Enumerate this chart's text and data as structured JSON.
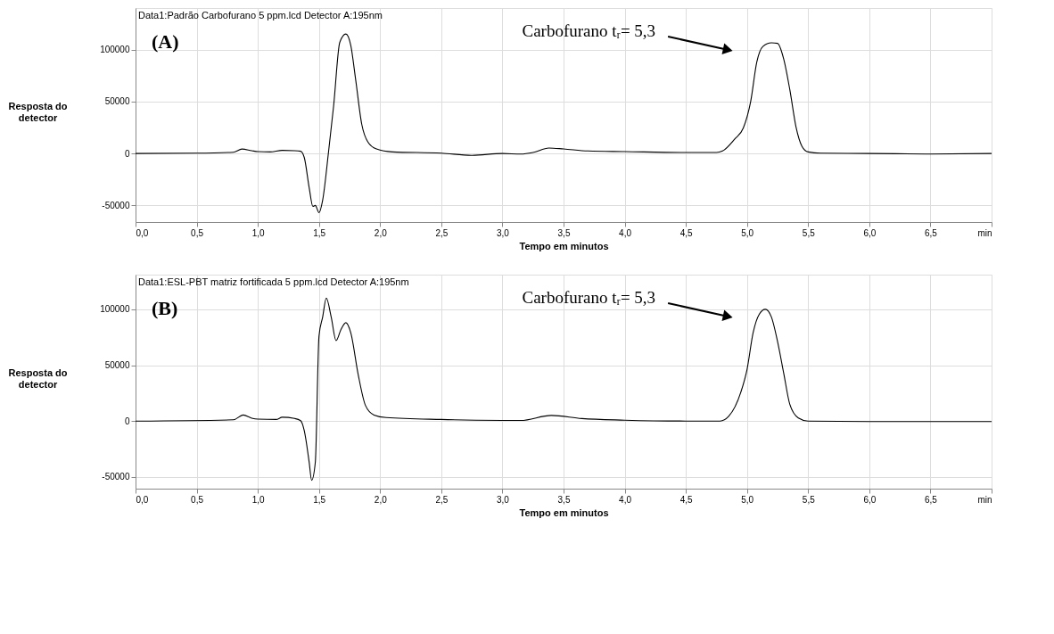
{
  "chart_data": [
    {
      "type": "line",
      "title": "Data1:Padrão Carbofurano 5 ppm.lcd Detector A:195nm",
      "xlabel": "Tempo em minutos",
      "ylabel": "Resposta do detector",
      "annotations": [
        "(A)",
        "Carbofurano tᵣ= 5,3"
      ],
      "series": [
        {
          "color": "#000000",
          "x": [
            0,
            0.5,
            0.8,
            0.87,
            0.95,
            1.0,
            1.1,
            1.2,
            1.3,
            1.35,
            1.38,
            1.42,
            1.45,
            1.47,
            1.5,
            1.53,
            1.58,
            1.62,
            1.67,
            1.72,
            1.76,
            1.8,
            1.85,
            1.9,
            1.97,
            2.1,
            2.5,
            2.75,
            3.0,
            3.15,
            3.25,
            3.38,
            3.5,
            3.7,
            4.0,
            4.5,
            4.75,
            4.8,
            4.9,
            4.97,
            5.03,
            5.08,
            5.13,
            5.2,
            5.25,
            5.3,
            5.35,
            5.4,
            5.45,
            5.5,
            5.6,
            6.0,
            6.5,
            7.0
          ],
          "values": [
            0,
            300,
            1200,
            4300,
            2700,
            1800,
            1500,
            3000,
            2700,
            2100,
            -4000,
            -33000,
            -51000,
            -50000,
            -57000,
            -45000,
            3500,
            46000,
            107000,
            115000,
            104000,
            71000,
            28000,
            11000,
            4300,
            1500,
            300,
            -1800,
            0,
            -600,
            900,
            5300,
            4400,
            2400,
            1800,
            900,
            900,
            2400,
            14000,
            24500,
            50000,
            88000,
            103000,
            106500,
            106000,
            91000,
            61500,
            26000,
            6800,
            1500,
            300,
            0,
            -500,
            0
          ]
        }
      ],
      "xlim": [
        0,
        7.0
      ],
      "ylim": [
        -66000,
        140000
      ],
      "xticks": [
        {
          "value": 0,
          "label": "0,0"
        },
        {
          "value": 0.5,
          "label": "0,5"
        },
        {
          "value": 1.0,
          "label": "1,0"
        },
        {
          "value": 1.5,
          "label": "1,5"
        },
        {
          "value": 2.0,
          "label": "2,0"
        },
        {
          "value": 2.5,
          "label": "2,5"
        },
        {
          "value": 3.0,
          "label": "3,0"
        },
        {
          "value": 3.5,
          "label": "3,5"
        },
        {
          "value": 4.0,
          "label": "4,0"
        },
        {
          "value": 4.5,
          "label": "4,5"
        },
        {
          "value": 5.0,
          "label": "5,0"
        },
        {
          "value": 5.5,
          "label": "5,5"
        },
        {
          "value": 6.0,
          "label": "6,0"
        },
        {
          "value": 6.5,
          "label": "6,5"
        },
        {
          "value": 7.0,
          "label": "min"
        }
      ],
      "yticks": [
        -50000,
        0,
        50000,
        100000
      ],
      "grid": true
    },
    {
      "type": "line",
      "title": "Data1:ESL-PBT matriz fortificada 5 ppm.lcd Detector A:195nm",
      "xlabel": "Tempo em minutos",
      "ylabel": "Resposta do detector",
      "annotations": [
        "(B)",
        "Carbofurano tᵣ= 5,3"
      ],
      "series": [
        {
          "color": "#000000",
          "x": [
            0,
            0.8,
            0.88,
            0.95,
            1.0,
            1.15,
            1.2,
            1.3,
            1.35,
            1.38,
            1.42,
            1.44,
            1.47,
            1.5,
            1.53,
            1.56,
            1.6,
            1.64,
            1.68,
            1.72,
            1.76,
            1.82,
            1.88,
            1.95,
            2.05,
            2.5,
            3.0,
            3.15,
            3.4,
            3.65,
            4.0,
            4.5,
            4.78,
            4.85,
            4.95,
            5.0,
            5.05,
            5.1,
            5.15,
            5.2,
            5.25,
            5.3,
            5.35,
            5.42,
            5.5,
            6.0,
            7.0
          ],
          "values": [
            0,
            1100,
            5400,
            2600,
            1700,
            1400,
            3400,
            2300,
            300,
            -8800,
            -37000,
            -53000,
            -37000,
            76000,
            93000,
            110000,
            93000,
            72000,
            82000,
            88000,
            79000,
            42000,
            14000,
            5400,
            3100,
            1400,
            600,
            500,
            5000,
            2200,
            800,
            0,
            0,
            4200,
            26000,
            46000,
            79000,
            95500,
            100000,
            93000,
            71000,
            43000,
            15000,
            2800,
            0,
            -500,
            -500
          ]
        }
      ],
      "xlim": [
        0,
        7.0
      ],
      "ylim": [
        -60500,
        131000
      ],
      "xticks": [
        {
          "value": 0,
          "label": "0,0"
        },
        {
          "value": 0.5,
          "label": "0,5"
        },
        {
          "value": 1.0,
          "label": "1,0"
        },
        {
          "value": 1.5,
          "label": "1,5"
        },
        {
          "value": 2.0,
          "label": "2,0"
        },
        {
          "value": 2.5,
          "label": "2,5"
        },
        {
          "value": 3.0,
          "label": "3,0"
        },
        {
          "value": 3.5,
          "label": "3,5"
        },
        {
          "value": 4.0,
          "label": "4,0"
        },
        {
          "value": 4.5,
          "label": "4,5"
        },
        {
          "value": 5.0,
          "label": "5,0"
        },
        {
          "value": 5.5,
          "label": "5,5"
        },
        {
          "value": 6.0,
          "label": "6,0"
        },
        {
          "value": 6.5,
          "label": "6,5"
        },
        {
          "value": 7.0,
          "label": "min"
        }
      ],
      "yticks": [
        -50000,
        0,
        50000,
        100000
      ],
      "grid": true
    }
  ]
}
